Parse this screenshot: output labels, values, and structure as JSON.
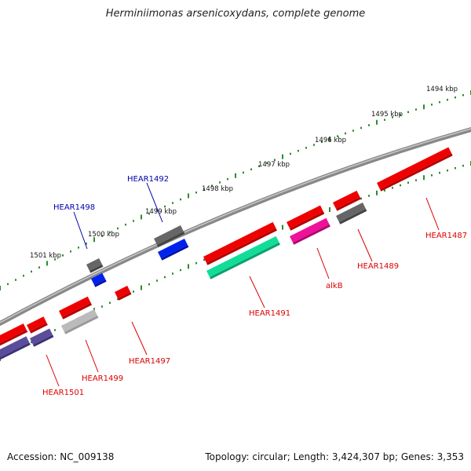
{
  "title": "Herminiimonas arsenicoxydans, complete genome",
  "footer": {
    "accession_label": "Accession: NC_009138",
    "summary": "Topology: circular; Length: 3,424,307 bp; Genes: 3,353"
  },
  "scale_labels": [
    "1494 kbp",
    "1495 kbp",
    "1496 kbp",
    "1497 kbp",
    "1498 kbp",
    "1499 kbp",
    "1500 kbp",
    "1501 kbp"
  ],
  "genes": [
    {
      "name": "HEAR1487",
      "color": "#dd0000"
    },
    {
      "name": "HEAR1489",
      "color": "#dd0000"
    },
    {
      "name": "alkB",
      "color": "#dd0000"
    },
    {
      "name": "HEAR1491",
      "color": "#dd0000"
    },
    {
      "name": "HEAR1492",
      "color": "#0000aa"
    },
    {
      "name": "HEAR1497",
      "color": "#dd0000"
    },
    {
      "name": "HEAR1498",
      "color": "#0000aa"
    },
    {
      "name": "HEAR1499",
      "color": "#dd0000"
    },
    {
      "name": "HEAR1501",
      "color": "#dd0000"
    }
  ],
  "colors": {
    "backbone": "#888888",
    "scale_dots": "#2e8b2e",
    "red_feature": "#ee0000",
    "blue_feature": "#0022ee",
    "gray_feature": "#666666",
    "green_feature": "#11dd99",
    "pink_feature": "#ee1199",
    "purple_feature": "#5a4e9a",
    "lightgray_feature": "#bbbbbb"
  }
}
